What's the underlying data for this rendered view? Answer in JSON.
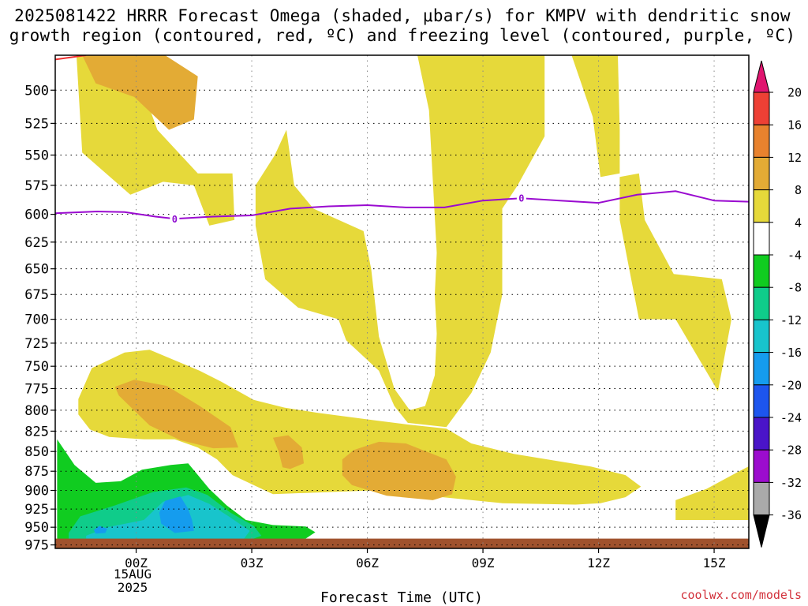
{
  "title": {
    "line1": "2025081422 HRRR Forecast Omega (shaded, μbar/s) for KMPV with dendritic snow",
    "line2": "growth region (contoured, red, ºC) and freezing level (contoured, purple, ºC)"
  },
  "credit": "coolwx.com/models",
  "colors": {
    "c4_8": "#e6d93a",
    "c8_12": "#e3ab35",
    "c12_16": "#e8822e",
    "c16_20": "#ee4035",
    "c20p": "#e0156f",
    "cm4_8": "#10cc20",
    "cm8_12": "#0fcc8a",
    "cm12_16": "#18c4cc",
    "cm16_20": "#159cee",
    "cm20_24": "#1d55ee",
    "cm24_28": "#4a14c8",
    "cm28_32": "#9c0cce",
    "cm32_36": "#aaaaaa",
    "freezing": "#9a0bd0",
    "dendritic": "#ee3030",
    "ground": "#a0522d"
  },
  "chart_data": {
    "type": "heatmap",
    "xlabel": "Forecast Time (UTC)",
    "x_ticks": [
      "00Z",
      "03Z",
      "06Z",
      "09Z",
      "12Z",
      "15Z"
    ],
    "x_tick_hours": [
      0,
      3,
      6,
      9,
      12,
      15
    ],
    "date_label": [
      "15AUG",
      "2025"
    ],
    "x_range_hours": [
      -2.1,
      15.9
    ],
    "y_ticks": [
      500,
      525,
      550,
      575,
      600,
      625,
      650,
      675,
      700,
      725,
      750,
      775,
      800,
      825,
      850,
      875,
      900,
      925,
      950,
      975
    ],
    "y_range_hPa": [
      475,
      980
    ],
    "y_scale": "log-pressure",
    "colorbar": {
      "labels": [
        "20",
        "16",
        "12",
        "8",
        "4",
        "-4",
        "-8",
        "-12",
        "-16",
        "-20",
        "-24",
        "-28",
        "-32",
        "-36"
      ],
      "bins": [
        {
          "range": "> 20",
          "color_key": "c20p"
        },
        {
          "range": "16 to 20",
          "color_key": "c16_20"
        },
        {
          "range": "12 to 16",
          "color_key": "c12_16"
        },
        {
          "range": "8 to 12",
          "color_key": "c8_12"
        },
        {
          "range": "4 to 8",
          "color_key": "c4_8"
        },
        {
          "range": "-4 to 4",
          "color_key": null
        },
        {
          "range": "-8 to -4",
          "color_key": "cm4_8"
        },
        {
          "range": "-12 to -8",
          "color_key": "cm8_12"
        },
        {
          "range": "-16 to -12",
          "color_key": "cm12_16"
        },
        {
          "range": "-20 to -16",
          "color_key": "cm16_20"
        },
        {
          "range": "-24 to -20",
          "color_key": "cm20_24"
        },
        {
          "range": "-28 to -24",
          "color_key": "cm24_28"
        },
        {
          "range": "-32 to -28",
          "color_key": "cm28_32"
        },
        {
          "range": "-36 to -32",
          "color_key": "cm32_36"
        },
        {
          "range": "< -36",
          "color_key": null
        }
      ]
    },
    "shaded_regions": [
      {
        "color_key": "c4_8",
        "points": [
          [
            -1.55,
            475
          ],
          [
            -0.15,
            475
          ],
          [
            0.55,
            530
          ],
          [
            1.6,
            565
          ],
          [
            2.5,
            565
          ],
          [
            2.55,
            605
          ],
          [
            1.9,
            610
          ],
          [
            1.5,
            575
          ],
          [
            0.7,
            572
          ],
          [
            -0.15,
            583
          ],
          [
            -1.4,
            548
          ]
        ]
      },
      {
        "color_key": "c8_12",
        "points": [
          [
            -1.4,
            475
          ],
          [
            0.75,
            475
          ],
          [
            1.6,
            490
          ],
          [
            1.5,
            522
          ],
          [
            0.85,
            530
          ],
          [
            -0.05,
            505
          ],
          [
            -1.05,
            495
          ]
        ]
      },
      {
        "color_key": "c4_8",
        "points": [
          [
            3.1,
            575
          ],
          [
            3.6,
            550
          ],
          [
            3.9,
            530
          ],
          [
            4.1,
            575
          ],
          [
            4.6,
            595
          ],
          [
            5.9,
            615
          ],
          [
            6.1,
            650
          ],
          [
            6.3,
            718
          ],
          [
            6.7,
            775
          ],
          [
            7.1,
            800
          ],
          [
            7.5,
            795
          ],
          [
            7.75,
            760
          ],
          [
            7.8,
            715
          ],
          [
            7.75,
            675
          ],
          [
            7.8,
            635
          ],
          [
            7.6,
            515
          ],
          [
            7.3,
            475
          ],
          [
            10.6,
            475
          ],
          [
            10.6,
            535
          ],
          [
            9.9,
            575
          ],
          [
            9.5,
            595
          ],
          [
            9.5,
            675
          ],
          [
            9.2,
            735
          ],
          [
            8.7,
            780
          ],
          [
            8.05,
            820
          ],
          [
            7.05,
            815
          ],
          [
            6.7,
            795
          ],
          [
            6.3,
            755
          ],
          [
            5.45,
            722
          ],
          [
            5.25,
            700
          ],
          [
            4.2,
            688
          ],
          [
            3.35,
            660
          ],
          [
            3.1,
            610
          ]
        ]
      },
      {
        "color_key": "c4_8",
        "points": [
          [
            11.3,
            475
          ],
          [
            12.5,
            475
          ],
          [
            12.55,
            530
          ],
          [
            12.55,
            565
          ],
          [
            12.05,
            568
          ],
          [
            11.85,
            520
          ]
        ]
      },
      {
        "color_key": "c4_8",
        "points": [
          [
            12.55,
            568
          ],
          [
            13.05,
            565
          ],
          [
            13.2,
            605
          ],
          [
            13.95,
            655
          ],
          [
            15.2,
            660
          ],
          [
            15.45,
            700
          ],
          [
            15.2,
            755
          ],
          [
            15.1,
            778
          ],
          [
            14.0,
            700
          ],
          [
            13.05,
            700
          ],
          [
            12.55,
            605
          ]
        ]
      },
      {
        "color_key": "c4_8",
        "points": [
          [
            -1.5,
            787
          ],
          [
            -1.15,
            752
          ],
          [
            -0.3,
            735
          ],
          [
            0.35,
            732
          ],
          [
            1.65,
            755
          ],
          [
            2.2,
            767
          ],
          [
            3.05,
            788
          ],
          [
            3.85,
            797
          ],
          [
            4.7,
            803
          ],
          [
            6.2,
            812
          ],
          [
            7.05,
            817
          ],
          [
            8.05,
            822
          ],
          [
            8.7,
            840
          ],
          [
            9.8,
            853
          ],
          [
            11.8,
            869
          ],
          [
            12.7,
            880
          ],
          [
            13.1,
            895
          ],
          [
            12.7,
            909
          ],
          [
            12.05,
            917
          ],
          [
            11.4,
            919
          ],
          [
            9.5,
            917
          ],
          [
            7.75,
            908
          ],
          [
            6.15,
            900
          ],
          [
            3.55,
            905
          ],
          [
            2.5,
            880
          ],
          [
            2.1,
            860
          ],
          [
            1.6,
            845
          ],
          [
            1.0,
            835
          ],
          [
            0.2,
            835
          ],
          [
            -0.7,
            832
          ],
          [
            -1.2,
            823
          ],
          [
            -1.5,
            805
          ]
        ]
      },
      {
        "color_key": "c8_12",
        "points": [
          [
            -0.55,
            773
          ],
          [
            -0.05,
            765
          ],
          [
            0.8,
            772
          ],
          [
            1.65,
            795
          ],
          [
            2.45,
            820
          ],
          [
            2.65,
            845
          ],
          [
            2.0,
            846
          ],
          [
            1.15,
            836
          ],
          [
            0.35,
            818
          ],
          [
            -0.45,
            783
          ]
        ]
      },
      {
        "color_key": "c8_12",
        "points": [
          [
            3.55,
            833
          ],
          [
            3.95,
            830
          ],
          [
            4.3,
            845
          ],
          [
            4.35,
            865
          ],
          [
            4.0,
            872
          ],
          [
            3.8,
            870
          ],
          [
            3.7,
            850
          ]
        ]
      },
      {
        "color_key": "c8_12",
        "points": [
          [
            5.35,
            860
          ],
          [
            5.65,
            848
          ],
          [
            6.3,
            838
          ],
          [
            7.0,
            840
          ],
          [
            8.05,
            860
          ],
          [
            8.3,
            882
          ],
          [
            8.2,
            905
          ],
          [
            7.7,
            913
          ],
          [
            6.5,
            907
          ],
          [
            5.6,
            893
          ],
          [
            5.35,
            880
          ]
        ]
      },
      {
        "color_key": "c4_8",
        "points": [
          [
            14.0,
            925
          ],
          [
            14.0,
            913
          ],
          [
            14.8,
            898
          ],
          [
            15.65,
            875
          ],
          [
            16.05,
            865
          ],
          [
            16.05,
            940
          ],
          [
            14.0,
            940
          ]
        ]
      },
      {
        "color_key": "cm4_8",
        "points": [
          [
            -2.05,
            835
          ],
          [
            -1.6,
            867
          ],
          [
            -1.05,
            890
          ],
          [
            -0.4,
            888
          ],
          [
            0.15,
            873
          ],
          [
            0.9,
            867
          ],
          [
            1.35,
            865
          ],
          [
            1.9,
            898
          ],
          [
            2.35,
            920
          ],
          [
            2.85,
            940
          ],
          [
            3.55,
            947
          ],
          [
            4.4,
            949
          ],
          [
            4.65,
            957
          ],
          [
            4.4,
            966
          ],
          [
            3.7,
            969
          ],
          [
            2.0,
            972
          ],
          [
            -2.05,
            972
          ]
        ]
      },
      {
        "color_key": "cm8_12",
        "points": [
          [
            -1.75,
            958
          ],
          [
            -1.45,
            935
          ],
          [
            -0.55,
            920
          ],
          [
            0.45,
            902
          ],
          [
            1.3,
            896
          ],
          [
            1.85,
            906
          ],
          [
            2.45,
            930
          ],
          [
            3.05,
            948
          ],
          [
            3.25,
            962
          ],
          [
            2.9,
            969
          ],
          [
            -1.75,
            969
          ]
        ]
      },
      {
        "color_key": "cm12_16",
        "points": [
          [
            -1.3,
            962
          ],
          [
            -0.75,
            950
          ],
          [
            0.2,
            940
          ],
          [
            0.7,
            915
          ],
          [
            1.35,
            906
          ],
          [
            1.9,
            918
          ],
          [
            2.4,
            935
          ],
          [
            2.95,
            955
          ],
          [
            2.8,
            966
          ],
          [
            -1.3,
            966
          ]
        ]
      },
      {
        "color_key": "cm16_20",
        "points": [
          [
            0.6,
            930
          ],
          [
            0.75,
            914
          ],
          [
            1.15,
            908
          ],
          [
            1.35,
            925
          ],
          [
            1.45,
            940
          ],
          [
            1.5,
            955
          ],
          [
            1.0,
            958
          ],
          [
            0.65,
            945
          ]
        ]
      },
      {
        "color_key": "cm16_20",
        "points": [
          [
            -1.1,
            954
          ],
          [
            -0.95,
            948
          ],
          [
            -0.75,
            952
          ],
          [
            -0.8,
            958
          ],
          [
            -1.05,
            959
          ]
        ]
      }
    ],
    "freezing_level": {
      "label": "0",
      "label_at_hours": [
        1.0,
        10.0
      ],
      "x_hours": [
        -2.1,
        -1.0,
        -0.3,
        0.5,
        1.0,
        2.0,
        3.0,
        4.0,
        5.0,
        6.0,
        7.0,
        8.0,
        9.0,
        10.0,
        11.0,
        12.0,
        13.0,
        14.0,
        15.0,
        15.9
      ],
      "y_hPa": [
        599,
        597.5,
        598,
        602,
        604,
        602,
        601,
        595,
        593,
        592,
        594,
        594,
        588,
        586,
        588,
        590,
        583,
        580,
        588,
        589
      ]
    },
    "dendritic_region": {
      "x_hours": [
        -2.1,
        -1.3
      ],
      "y_hPa": [
        478,
        475
      ]
    },
    "ground_top_hPa": 975
  }
}
